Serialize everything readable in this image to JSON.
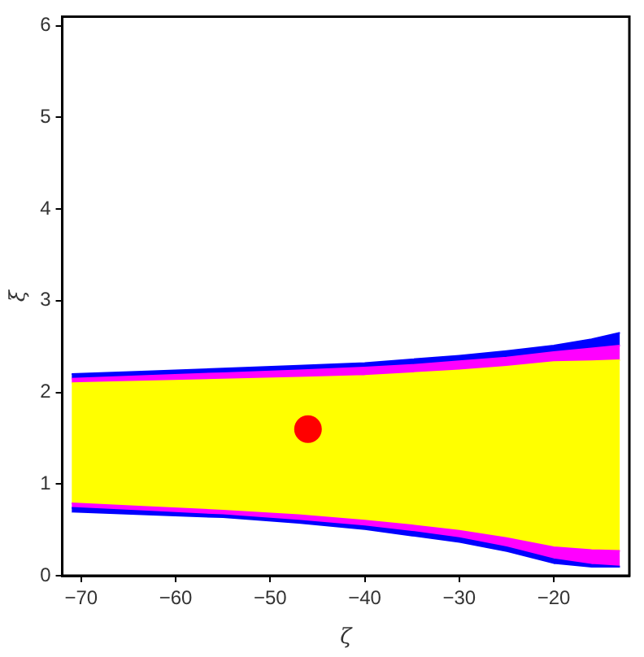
{
  "chart_data": {
    "type": "area",
    "stacked": true,
    "xlabel": "ζ",
    "ylabel": "ξ",
    "x": [
      -71,
      -63,
      -55,
      -47,
      -40,
      -35,
      -30,
      -25,
      -20,
      -16,
      -13
    ],
    "series": [
      {
        "color": "#ffffff",
        "values": [
          0.68,
          0.65,
          0.62,
          0.56,
          0.49,
          0.42,
          0.35,
          0.25,
          0.12,
          0.08,
          0.08
        ]
      },
      {
        "color": "#0000ff",
        "values": [
          0.06,
          0.05,
          0.04,
          0.04,
          0.05,
          0.06,
          0.06,
          0.06,
          0.06,
          0.04,
          0.02
        ]
      },
      {
        "color": "#ff00ff",
        "values": [
          0.05,
          0.05,
          0.05,
          0.06,
          0.06,
          0.07,
          0.08,
          0.1,
          0.13,
          0.16,
          0.17
        ]
      },
      {
        "color": "#ffff00",
        "values": [
          1.31,
          1.37,
          1.43,
          1.5,
          1.58,
          1.66,
          1.75,
          1.87,
          2.02,
          2.06,
          2.08
        ]
      },
      {
        "color": "#ff00ff",
        "values": [
          0.05,
          0.06,
          0.07,
          0.08,
          0.09,
          0.09,
          0.1,
          0.1,
          0.11,
          0.14,
          0.16
        ]
      },
      {
        "color": "#0000ff",
        "values": [
          0.05,
          0.05,
          0.05,
          0.05,
          0.05,
          0.06,
          0.06,
          0.07,
          0.07,
          0.1,
          0.14
        ]
      },
      {
        "type": "scatter",
        "color": "#ff0000",
        "x": [
          -46
        ],
        "values": [
          1.6
        ],
        "marker": "circle"
      }
    ],
    "xlim": [
      -72,
      -12
    ],
    "xticks": [
      -70,
      -60,
      -50,
      -40,
      -30,
      -20
    ],
    "ylim": [
      0,
      6.1
    ],
    "yticks": [
      0,
      1,
      2,
      3,
      4,
      5,
      6
    ],
    "grid": false,
    "legend": false
  }
}
